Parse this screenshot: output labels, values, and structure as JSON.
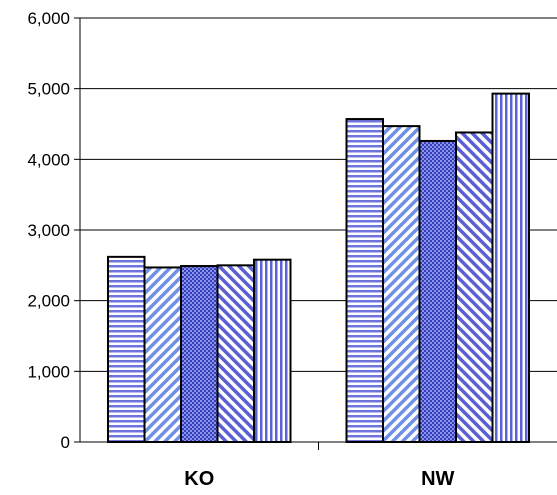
{
  "chart_data": {
    "type": "bar",
    "title": "",
    "xlabel": "",
    "ylabel": "",
    "categories": [
      "KO",
      "NW"
    ],
    "series": [
      {
        "values": [
          2620,
          4570
        ],
        "pattern": "hstripes"
      },
      {
        "values": [
          2470,
          4470
        ],
        "pattern": "diag-up"
      },
      {
        "values": [
          2490,
          4260
        ],
        "pattern": "dense"
      },
      {
        "values": [
          2500,
          4380
        ],
        "pattern": "diag-down"
      },
      {
        "values": [
          2580,
          4930
        ],
        "pattern": "vstripes"
      }
    ],
    "ylim": [
      0,
      6000
    ],
    "yticks": [
      {
        "value": 0,
        "label": "0"
      },
      {
        "value": 1000,
        "label": "1,000"
      },
      {
        "value": 2000,
        "label": "2,000"
      },
      {
        "value": 3000,
        "label": "3,000"
      },
      {
        "value": 4000,
        "label": "4,000"
      },
      {
        "value": 5000,
        "label": "5,000"
      },
      {
        "value": 6000,
        "label": "6,000"
      }
    ],
    "grid": true,
    "legend": "none",
    "colors": {
      "bar_base": "#7b7fe0",
      "bar_light": "#ffffff",
      "bar_dark": "#2e3aa8",
      "outline": "#000000",
      "grid": "#000000"
    }
  }
}
